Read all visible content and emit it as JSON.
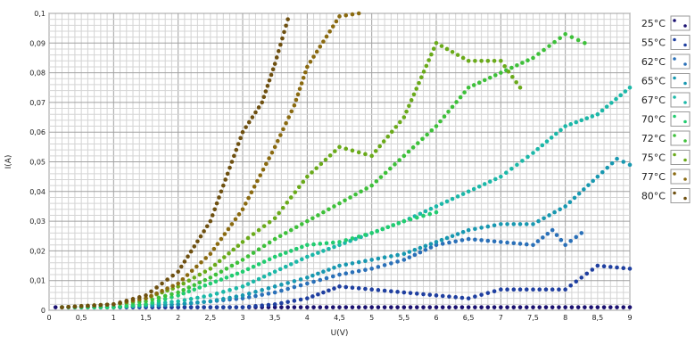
{
  "chart_data": {
    "type": "scatter",
    "title": "",
    "xlabel": "U(V)",
    "ylabel": "I(A)",
    "xlim": [
      0,
      9
    ],
    "ylim": [
      0,
      0.1
    ],
    "grid": true,
    "legend_position": "right",
    "x_ticks": [
      "0",
      "0,5",
      "1",
      "1,5",
      "2",
      "2,5",
      "3",
      "3,5",
      "4",
      "4,5",
      "5",
      "5,5",
      "6",
      "6,5",
      "7",
      "7,5",
      "8",
      "8,5",
      "9"
    ],
    "y_ticks": [
      "0",
      "0,01",
      "0,02",
      "0,03",
      "0,04",
      "0,05",
      "0,06",
      "0,07",
      "0,08",
      "0,09",
      "0,1"
    ],
    "series": [
      {
        "name": "25°C",
        "color": "#1a1070",
        "points": [
          [
            0.1,
            0.001
          ],
          [
            0.5,
            0.001
          ],
          [
            1,
            0.001
          ],
          [
            1.5,
            0.001
          ],
          [
            2,
            0.001
          ],
          [
            2.5,
            0.001
          ],
          [
            3,
            0.001
          ],
          [
            3.5,
            0.001
          ],
          [
            4,
            0.001
          ],
          [
            4.5,
            0.001
          ],
          [
            5,
            0.001
          ],
          [
            5.5,
            0.001
          ],
          [
            6,
            0.001
          ],
          [
            6.5,
            0.001
          ],
          [
            7,
            0.001
          ],
          [
            7.5,
            0.001
          ],
          [
            8,
            0.001
          ],
          [
            8.5,
            0.001
          ],
          [
            9,
            0.001
          ]
        ]
      },
      {
        "name": "55°C",
        "color": "#1f3fa0",
        "points": [
          [
            0.2,
            0.001
          ],
          [
            1,
            0.001
          ],
          [
            2,
            0.001
          ],
          [
            3,
            0.001
          ],
          [
            3.5,
            0.002
          ],
          [
            4,
            0.004
          ],
          [
            4.5,
            0.008
          ],
          [
            5,
            0.007
          ],
          [
            5.5,
            0.006
          ],
          [
            6,
            0.005
          ],
          [
            6.5,
            0.004
          ],
          [
            7,
            0.007
          ],
          [
            7.5,
            0.007
          ],
          [
            8,
            0.007
          ],
          [
            8.5,
            0.015
          ],
          [
            9,
            0.014
          ]
        ]
      },
      {
        "name": "62°C",
        "color": "#2a70b8",
        "points": [
          [
            0.2,
            0.001
          ],
          [
            1,
            0.001
          ],
          [
            2,
            0.002
          ],
          [
            3,
            0.004
          ],
          [
            3.5,
            0.006
          ],
          [
            4,
            0.009
          ],
          [
            4.5,
            0.012
          ],
          [
            5,
            0.014
          ],
          [
            5.5,
            0.017
          ],
          [
            6,
            0.022
          ],
          [
            6.5,
            0.024
          ],
          [
            7,
            0.023
          ],
          [
            7.5,
            0.022
          ],
          [
            7.8,
            0.027
          ],
          [
            8,
            0.022
          ],
          [
            8.25,
            0.026
          ]
        ]
      },
      {
        "name": "65°C",
        "color": "#1898b0",
        "points": [
          [
            0.2,
            0.001
          ],
          [
            1,
            0.001
          ],
          [
            2,
            0.002
          ],
          [
            2.5,
            0.003
          ],
          [
            3,
            0.005
          ],
          [
            3.5,
            0.008
          ],
          [
            4,
            0.011
          ],
          [
            4.5,
            0.015
          ],
          [
            5,
            0.017
          ],
          [
            5.5,
            0.019
          ],
          [
            6,
            0.023
          ],
          [
            6.5,
            0.027
          ],
          [
            7,
            0.029
          ],
          [
            7.5,
            0.029
          ],
          [
            8,
            0.035
          ],
          [
            8.5,
            0.045
          ],
          [
            8.8,
            0.051
          ],
          [
            9,
            0.049
          ]
        ]
      },
      {
        "name": "67°C",
        "color": "#1cb8a8",
        "points": [
          [
            0.2,
            0.001
          ],
          [
            1,
            0.001
          ],
          [
            2,
            0.003
          ],
          [
            2.5,
            0.005
          ],
          [
            3,
            0.008
          ],
          [
            3.5,
            0.013
          ],
          [
            4,
            0.018
          ],
          [
            4.5,
            0.022
          ],
          [
            5,
            0.026
          ],
          [
            5.5,
            0.03
          ],
          [
            6,
            0.035
          ],
          [
            6.5,
            0.04
          ],
          [
            7,
            0.045
          ],
          [
            7.5,
            0.053
          ],
          [
            8,
            0.062
          ],
          [
            8.5,
            0.066
          ],
          [
            9,
            0.075
          ]
        ]
      },
      {
        "name": "70°C",
        "color": "#22cc70",
        "points": [
          [
            0.2,
            0.001
          ],
          [
            1,
            0.001
          ],
          [
            1.5,
            0.002
          ],
          [
            2,
            0.005
          ],
          [
            2.5,
            0.009
          ],
          [
            3,
            0.013
          ],
          [
            3.5,
            0.018
          ],
          [
            4,
            0.022
          ],
          [
            4.5,
            0.023
          ],
          [
            5,
            0.026
          ],
          [
            5.5,
            0.03
          ],
          [
            6,
            0.033
          ]
        ]
      },
      {
        "name": "72°C",
        "color": "#3ec03a",
        "points": [
          [
            0.2,
            0.001
          ],
          [
            1,
            0.002
          ],
          [
            1.5,
            0.003
          ],
          [
            2,
            0.006
          ],
          [
            2.5,
            0.011
          ],
          [
            3,
            0.017
          ],
          [
            3.5,
            0.024
          ],
          [
            4,
            0.03
          ],
          [
            4.5,
            0.036
          ],
          [
            5,
            0.042
          ],
          [
            5.5,
            0.052
          ],
          [
            6,
            0.062
          ],
          [
            6.5,
            0.075
          ],
          [
            7,
            0.08
          ],
          [
            7.5,
            0.085
          ],
          [
            8,
            0.093
          ],
          [
            8.3,
            0.09
          ]
        ]
      },
      {
        "name": "75°C",
        "color": "#6aaa1a",
        "points": [
          [
            0.2,
            0.001
          ],
          [
            1,
            0.002
          ],
          [
            1.5,
            0.004
          ],
          [
            2,
            0.008
          ],
          [
            2.5,
            0.014
          ],
          [
            3,
            0.023
          ],
          [
            3.5,
            0.031
          ],
          [
            4,
            0.045
          ],
          [
            4.5,
            0.055
          ],
          [
            5,
            0.052
          ],
          [
            5.5,
            0.065
          ],
          [
            6,
            0.09
          ],
          [
            6.5,
            0.084
          ],
          [
            7,
            0.084
          ],
          [
            7.3,
            0.075
          ]
        ]
      },
      {
        "name": "77°C",
        "color": "#8a6a10",
        "points": [
          [
            0.2,
            0.001
          ],
          [
            1,
            0.002
          ],
          [
            1.5,
            0.004
          ],
          [
            2,
            0.009
          ],
          [
            2.5,
            0.019
          ],
          [
            3,
            0.034
          ],
          [
            3.5,
            0.055
          ],
          [
            3.8,
            0.069
          ],
          [
            4,
            0.082
          ],
          [
            4.5,
            0.099
          ],
          [
            4.8,
            0.1
          ]
        ]
      },
      {
        "name": "80°C",
        "color": "#6e5010",
        "points": [
          [
            0.2,
            0.001
          ],
          [
            1,
            0.002
          ],
          [
            1.5,
            0.005
          ],
          [
            2,
            0.013
          ],
          [
            2.5,
            0.03
          ],
          [
            3,
            0.06
          ],
          [
            3.3,
            0.07
          ],
          [
            3.5,
            0.083
          ],
          [
            3.7,
            0.098
          ]
        ]
      }
    ]
  }
}
